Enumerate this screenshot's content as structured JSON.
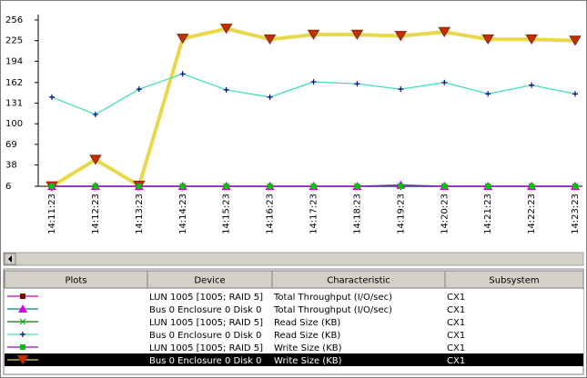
{
  "chart_data": {
    "type": "line",
    "categories": [
      "14:11:23",
      "14:12:23",
      "14:13:23",
      "14:14:23",
      "14:15:23",
      "14:16:23",
      "14:17:23",
      "14:18:23",
      "14:19:23",
      "14:20:23",
      "14:21:23",
      "14:22:23",
      "14:23:23"
    ],
    "ylim": [
      6,
      256
    ],
    "yticks": [
      6,
      38,
      69,
      100,
      131,
      162,
      194,
      225,
      256
    ],
    "series": [
      {
        "color": "#c000c0",
        "marker_color": "#800000",
        "marker": "square",
        "values": [
          6,
          6,
          6,
          6,
          6,
          6,
          6,
          6,
          6,
          6,
          6,
          6,
          6
        ]
      },
      {
        "color": "#008080",
        "marker_color": "#e000e0",
        "marker": "triangle-up",
        "values": [
          6,
          6,
          6,
          6,
          6,
          6,
          6,
          6,
          8,
          6,
          6,
          6,
          6
        ]
      },
      {
        "color": "#008000",
        "marker_color": "#00a000",
        "marker": "x",
        "values": [
          6,
          6,
          6,
          6,
          6,
          6,
          6,
          6,
          6,
          6,
          6,
          6,
          6
        ]
      },
      {
        "color": "#40e0c0",
        "marker_color": "#000080",
        "marker": "plus",
        "values": [
          140,
          114,
          152,
          175,
          151,
          140,
          163,
          160,
          152,
          162,
          145,
          158,
          145
        ]
      },
      {
        "color": "#a000c0",
        "marker_color": "#00c000",
        "marker": "square",
        "values": [
          6,
          6,
          6,
          6,
          6,
          6,
          6,
          6,
          6,
          6,
          6,
          6,
          6
        ]
      },
      {
        "color": "#e8d84a",
        "marker_color": "#c03000",
        "marker": "triangle-down",
        "values": [
          6,
          46,
          7,
          228,
          243,
          227,
          234,
          234,
          232,
          238,
          227,
          227,
          225
        ]
      }
    ]
  },
  "table": {
    "columns": [
      "Plots",
      "Device",
      "Characteristic",
      "Subsystem"
    ],
    "rows": [
      [
        "LUN 1005 [1005; RAID 5]",
        "Total Throughput (I/O/sec)",
        "CX1"
      ],
      [
        "Bus 0 Enclosure 0 Disk 0",
        "Total Throughput (I/O/sec)",
        "CX1"
      ],
      [
        "LUN 1005 [1005; RAID 5]",
        "Read Size (KB)",
        "CX1"
      ],
      [
        "Bus 0 Enclosure 0 Disk 0",
        "Read Size (KB)",
        "CX1"
      ],
      [
        "LUN 1005 [1005; RAID 5]",
        "Write Size (KB)",
        "CX1"
      ],
      [
        "Bus 0 Enclosure 0 Disk 0",
        "Write Size (KB)",
        "CX1"
      ]
    ],
    "selected_row": 5
  }
}
